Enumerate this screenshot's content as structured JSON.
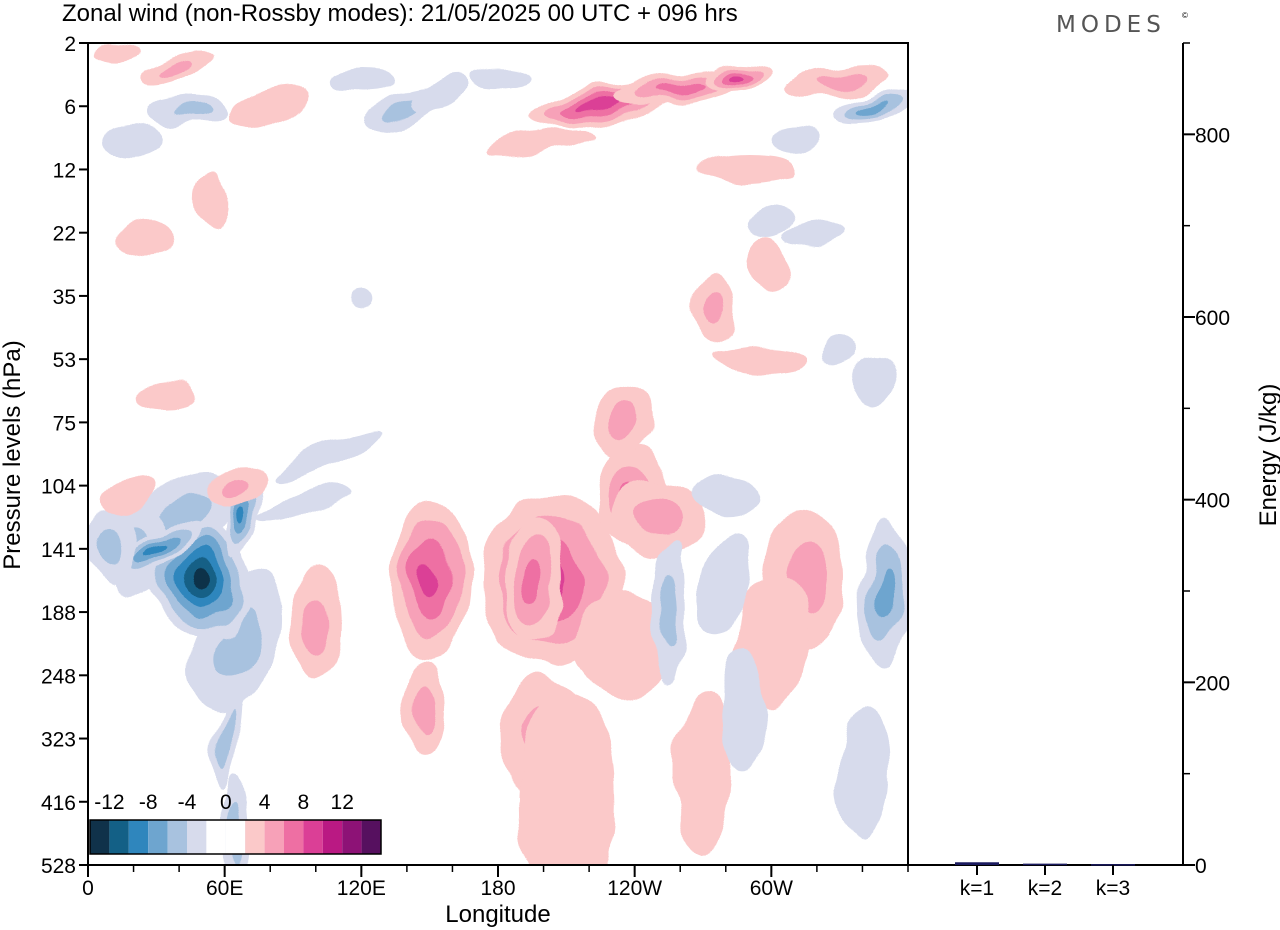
{
  "page": {
    "title": "Zonal wind (non-Rossby modes):  21/05/2025  00 UTC  + 096 hrs",
    "brand": "MODES",
    "brand_mark": "©"
  },
  "chart_data": [
    {
      "type": "heatmap",
      "title": "Zonal wind (non-Rossby modes):  21/05/2025  00 UTC  + 096 hrs",
      "xlabel": "Longitude",
      "ylabel": "Pressure levels (hPa)",
      "x_ticks": [
        "0",
        "60E",
        "120E",
        "180",
        "120W",
        "60W"
      ],
      "x_range_deg": [
        0,
        360
      ],
      "y_ticks": [
        "2",
        "6",
        "12",
        "22",
        "35",
        "53",
        "75",
        "104",
        "141",
        "188",
        "248",
        "323",
        "416",
        "528"
      ],
      "y_scale": "model levels (top = 2 hPa, bottom = 528 hPa)",
      "colorbar": {
        "tick_labels": [
          "-12",
          "-8",
          "-4",
          "0",
          "4",
          "8",
          "12"
        ],
        "levels": [
          -14,
          -12,
          -10,
          -8,
          -6,
          -4,
          -2,
          2,
          4,
          6,
          8,
          10,
          12,
          14
        ],
        "colors": [
          "#10324a",
          "#136086",
          "#2f86bd",
          "#6ea5cf",
          "#a8c2df",
          "#d7dbec",
          "#ffffff",
          "#ffffff",
          "#fbc9c9",
          "#f7a1b8",
          "#ee6fa3",
          "#db3f96",
          "#ba1983",
          "#8d1276",
          "#56105f"
        ]
      },
      "features": [
        {
          "lon": 50,
          "level": "141",
          "value": -13
        },
        {
          "lon": 20,
          "level": "141",
          "value": -6
        },
        {
          "lon": 150,
          "level": "141",
          "value": 9
        },
        {
          "lon": 196,
          "level": "141",
          "value": 9
        },
        {
          "lon": 210,
          "level": "141",
          "value": 9
        },
        {
          "lon": 240,
          "level": "104",
          "value": 6
        },
        {
          "lon": 100,
          "level": "188",
          "value": 5
        },
        {
          "lon": 312,
          "level": "141",
          "value": 5
        },
        {
          "lon": 225,
          "level": "6",
          "value": 8
        },
        {
          "lon": 285,
          "level": "6",
          "value": 8
        },
        {
          "lon": 140,
          "level": "6",
          "value": -5
        },
        {
          "lon": 345,
          "level": "6",
          "value": -6
        },
        {
          "lon": 350,
          "level": "141",
          "value": -6
        },
        {
          "lon": 65,
          "level": "323",
          "value": -5
        },
        {
          "lon": 200,
          "level": "323",
          "value": 3
        }
      ]
    },
    {
      "type": "bar",
      "categories": [
        "k=1",
        "k=2",
        "k=3"
      ],
      "values": [
        3,
        1.5,
        1
      ],
      "ylabel": "Energy (J/kg)",
      "ylim": [
        0,
        900
      ],
      "y_ticks": [
        0,
        200,
        400,
        600,
        800
      ],
      "bar_color": "#1a1a5e"
    }
  ]
}
